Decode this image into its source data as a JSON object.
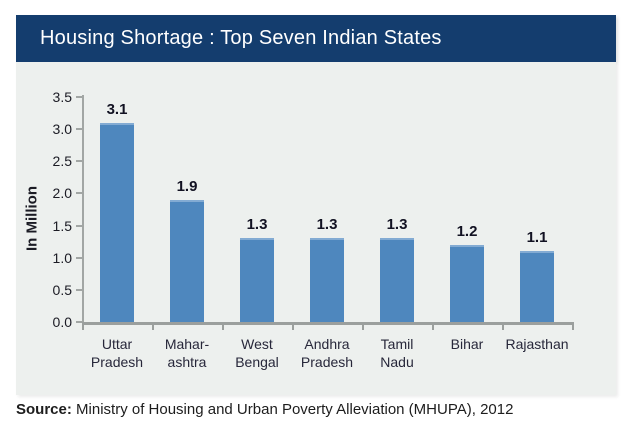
{
  "header": {
    "title": "Housing Shortage : Top Seven Indian States"
  },
  "source": {
    "label": "Source:",
    "text": " Ministry of Housing and Urban Poverty Alleviation (MHUPA), 2012"
  },
  "colors": {
    "title_bar_bg": "#143d6e",
    "title_text": "#ffffff",
    "bar_fill": "#4e87be",
    "bar_top_edge": "#83abd3",
    "chart_bg": "#edf0ee",
    "axis_gray": "#9b9f9d",
    "label_dark": "#1b1b24"
  },
  "chart_data": {
    "type": "bar",
    "title": "Housing Shortage : Top Seven Indian States",
    "categories": [
      "Uttar\nPradesh",
      "Mahar-\nashtra",
      "West\nBengal",
      "Andhra\nPradesh",
      "Tamil\nNadu",
      "Bihar",
      "Rajasthan"
    ],
    "values": [
      3.1,
      1.9,
      1.3,
      1.3,
      1.3,
      1.2,
      1.1
    ],
    "value_labels": [
      "3.1",
      "1.9",
      "1.3",
      "1.3",
      "1.3",
      "1.2",
      "1.1"
    ],
    "xlabel": "",
    "ylabel": "In Million",
    "ylim": [
      0,
      3.5
    ],
    "ytick_step": 0.5,
    "ytick_labels": [
      "0.0",
      "0.5",
      "1.0",
      "1.5",
      "2.0",
      "2.5",
      "3.0",
      "3.5"
    ],
    "grid": false,
    "legend": "none",
    "data_labels": true
  }
}
